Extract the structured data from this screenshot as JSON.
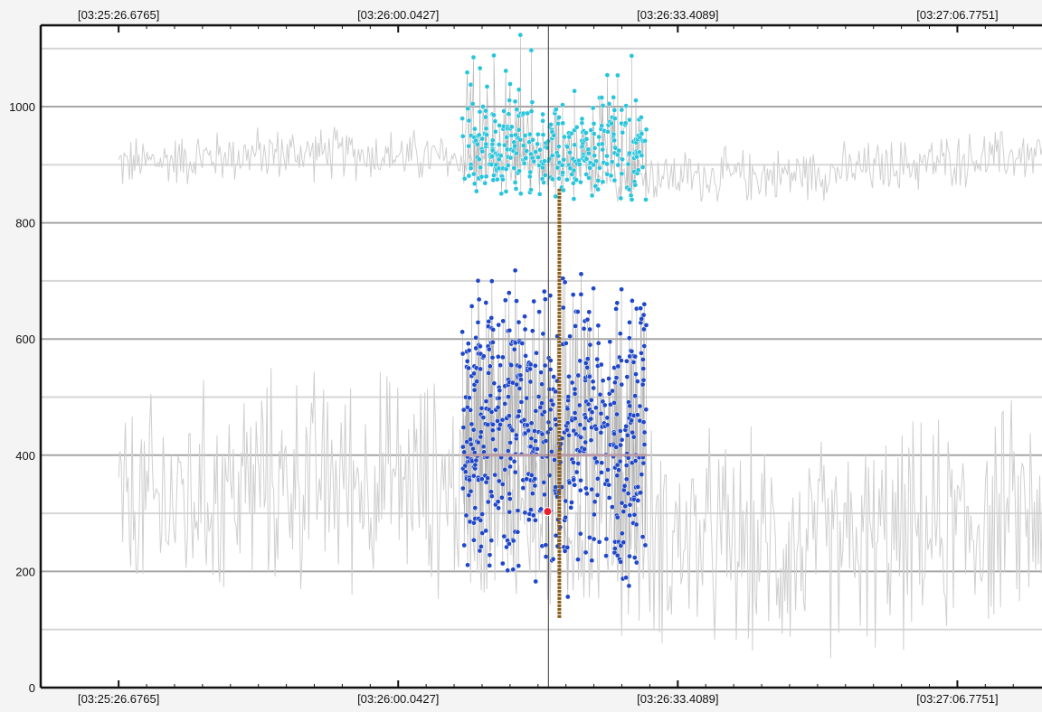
{
  "chart_data": {
    "type": "scatter",
    "title": "",
    "xlabel": "",
    "ylabel": "",
    "x_ticks": [
      "[03:25:26.6765]",
      "[03:26:00.0427]",
      "[03:26:33.4089]",
      "[03:27:06.7751]"
    ],
    "x_tick_seconds": [
      0,
      33.3662,
      66.7324,
      100.0986
    ],
    "xlim_seconds": [
      -9.3,
      110.2
    ],
    "y_ticks": [
      0,
      200,
      400,
      600,
      800,
      1000
    ],
    "ylim": [
      0,
      1140
    ],
    "grid": true,
    "legend": "none",
    "cursor_x_seconds": 51.3,
    "colors": {
      "background": "#f4f4f4",
      "plot_background": "#ffffff",
      "grid_major": "#a6a6a6",
      "grid_minor": "#d6d6d6",
      "trace": "#cfcfcf",
      "upper_points": "#29c5dc",
      "lower_points": "#1f47c8",
      "vertical_bar": "#8a5a14",
      "horizontal_band": "#b89aa6",
      "highlight_point": "#e8202a",
      "cursor": "#555555"
    },
    "series": [
      {
        "role": "upper-background-trace",
        "x_range_seconds": [
          0,
          112.5
        ],
        "baseline": 900,
        "amplitude": 40,
        "samples": 700
      },
      {
        "role": "lower-background-trace",
        "x_range_seconds": [
          0,
          112.5
        ],
        "baseline": 300,
        "amplitude": 160,
        "samples": 700
      },
      {
        "role": "upper-highlighted-points",
        "x_range_seconds": [
          41,
          63
        ],
        "y_center": 930,
        "y_min": 840,
        "y_max": 1140,
        "count": 360
      },
      {
        "role": "lower-highlighted-points",
        "x_range_seconds": [
          41,
          63
        ],
        "y_min": 120,
        "y_max": 760,
        "count": 620
      }
    ],
    "vertical_bar": {
      "x_seconds": 52.6,
      "y_range": [
        120,
        860
      ]
    },
    "horizontal_band": {
      "x_range_seconds": [
        41,
        63
      ],
      "y": 400
    },
    "highlight_point": {
      "x_seconds": 51.2,
      "y": 303
    }
  }
}
